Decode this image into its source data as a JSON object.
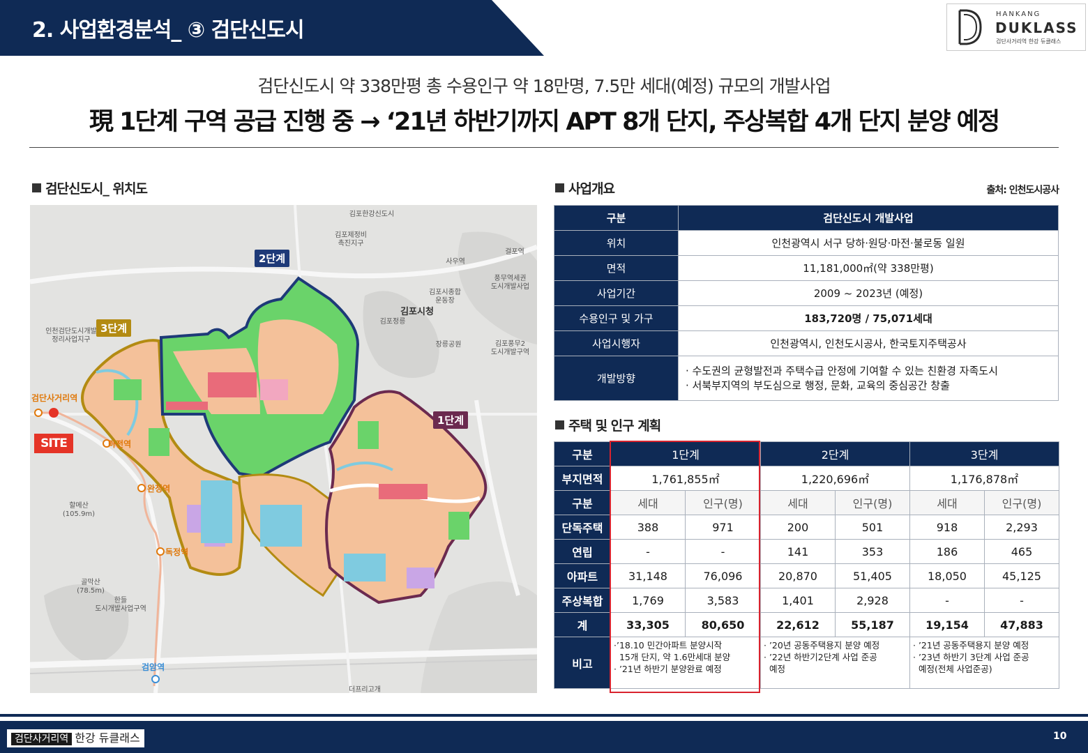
{
  "header": {
    "title": "2. 사업환경분석_ ③ 검단신도시",
    "logo": {
      "small": "HANKANG",
      "main": "DUKLASS",
      "sub": "검단사거리역 한강 듀클래스"
    }
  },
  "headline": {
    "sub": "검단신도시 약 338만평 총 수용인구 약 18만명, 7.5만 세대(예정) 규모의 개발사업",
    "main": "現 1단계 구역 공급 진행 중 → ‘21년 하반기까지 APT 8개 단지, 주상복합 4개 단지 분양 예정"
  },
  "map_section": {
    "title": "검단신도시_ 위치도",
    "phases": {
      "p1": "1단계",
      "p2": "2단계",
      "p3": "3단계"
    },
    "site": "SITE",
    "stations": {
      "s1": "검단사거리역",
      "s2": "마전역",
      "s3": "완정역",
      "s4": "독정역",
      "s5": "검암역"
    },
    "labels": {
      "l1": "김포한강신도시",
      "l2": "김포제정비\n촉진지구",
      "l3": "사우역",
      "l4": "김포시청",
      "l5": "김포시종합\n운동장",
      "l6": "인천검단도시개발\n정리사업지구",
      "l7": "할메산\n(105.9m)",
      "l8": "골막산\n(78.5m)",
      "l9": "한들\n도시개발사업구역",
      "l10": "걸포역",
      "l11": "김포정릉",
      "l12": "장릉공원",
      "l13": "풍무역세권\n도시개발사업",
      "l14": "김포풍무2\n도시개발구역",
      "l15": "더프리고개"
    }
  },
  "overview": {
    "title": "사업개요",
    "source": "출처: 인천도시공사",
    "header": {
      "label": "구분",
      "value": "검단신도시 개발사업"
    },
    "rows": [
      {
        "label": "위치",
        "value": "인천광역시 서구 당하·원당·마전·불로동 일원"
      },
      {
        "label": "면적",
        "value": "11,181,000㎡(약 338만평)"
      },
      {
        "label": "사업기간",
        "value": "2009 ~ 2023년 (예정)"
      },
      {
        "label": "수용인구 및 가구",
        "value": "183,720명 / 75,071세대"
      },
      {
        "label": "사업시행자",
        "value": "인천광역시, 인천도시공사, 한국토지주택공사"
      }
    ],
    "direction": {
      "label": "개발방향",
      "line1": "· 수도권의 균형발전과 주택수급 안정에 기여할 수 있는 친환경 자족도시",
      "line2": "· 서북부지역의 부도심으로 행정, 문화, 교육의 중심공간 창출"
    }
  },
  "plan": {
    "title": "주택 및 인구 계획",
    "corner": "구분",
    "phases": [
      "1단계",
      "2단계",
      "3단계"
    ],
    "area_label": "부지면적",
    "areas": [
      "1,761,855㎡",
      "1,220,696㎡",
      "1,176,878㎡"
    ],
    "sub_label": "구분",
    "sub_cols": [
      "세대",
      "인구(명)"
    ],
    "rows": [
      {
        "label": "단독주택",
        "values": [
          "388",
          "971",
          "200",
          "501",
          "918",
          "2,293"
        ]
      },
      {
        "label": "연립",
        "values": [
          "-",
          "-",
          "141",
          "353",
          "186",
          "465"
        ]
      },
      {
        "label": "아파트",
        "values": [
          "31,148",
          "76,096",
          "20,870",
          "51,405",
          "18,050",
          "45,125"
        ]
      },
      {
        "label": "주상복합",
        "values": [
          "1,769",
          "3,583",
          "1,401",
          "2,928",
          "-",
          "-"
        ]
      }
    ],
    "total": {
      "label": "계",
      "values": [
        "33,305",
        "80,650",
        "22,612",
        "55,187",
        "19,154",
        "47,883"
      ]
    },
    "notes_label": "비고",
    "notes": [
      [
        "·’18.10 민간아파트 분양시작",
        "  15개 단지, 약 1.6만세대 분양",
        "· ’21년 하반기 분양완료 예정"
      ],
      [
        "· ’20년 공동주택용지 분양 예정",
        "· ’22년 하반기2단계 사업 준공",
        "  예정"
      ],
      [
        "· ’21년 공동주택용지 분양 예정",
        "· ’23년 하반기 3단계 사업 준공",
        "  예정(전체 사업준공)"
      ]
    ]
  },
  "footer": {
    "station": "검단사거리역",
    "brand": "한강 듀클래스",
    "page": "10"
  },
  "colors": {
    "navy": "#0f2a55",
    "phase1": "#6b2a4f",
    "phase2": "#1e3a78",
    "phase3": "#b38b12",
    "highlight": "#d9232e"
  }
}
